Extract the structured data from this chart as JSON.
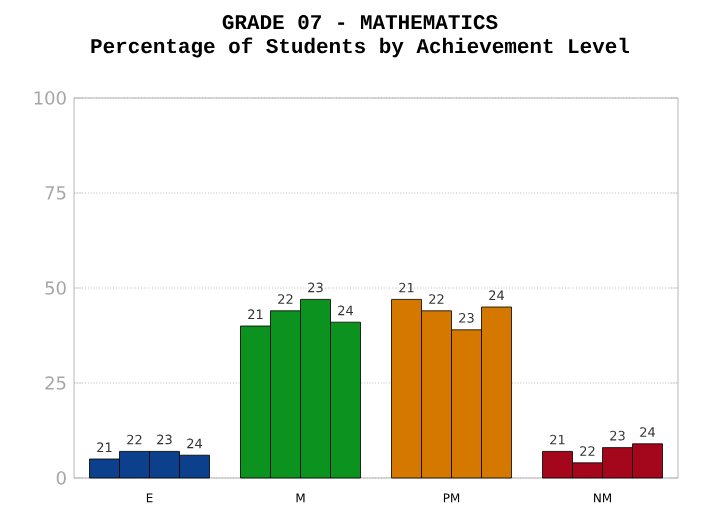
{
  "chart_data": {
    "type": "bar",
    "title": "GRADE 07 - MATHEMATICS",
    "subtitle": "Percentage of Students by Achievement Level",
    "categories": [
      "E",
      "M",
      "PM",
      "NM"
    ],
    "series": [
      {
        "name": "21",
        "colors": [
          "#0c3f8c",
          "#0c921f",
          "#d47800",
          "#a4061c"
        ],
        "values": [
          5,
          40,
          47,
          7
        ]
      },
      {
        "name": "22",
        "colors": [
          "#0c3f8c",
          "#0c921f",
          "#d47800",
          "#a4061c"
        ],
        "values": [
          7,
          44,
          44,
          4
        ]
      },
      {
        "name": "23",
        "colors": [
          "#0c3f8c",
          "#0c921f",
          "#d47800",
          "#a4061c"
        ],
        "values": [
          7,
          47,
          39,
          8
        ]
      },
      {
        "name": "24",
        "colors": [
          "#0c3f8c",
          "#0c921f",
          "#d47800",
          "#a4061c"
        ],
        "values": [
          6,
          41,
          45,
          9
        ]
      }
    ],
    "ylim": [
      0,
      100
    ],
    "yticks": [
      0,
      25,
      50,
      75,
      100
    ],
    "grid": "y"
  }
}
